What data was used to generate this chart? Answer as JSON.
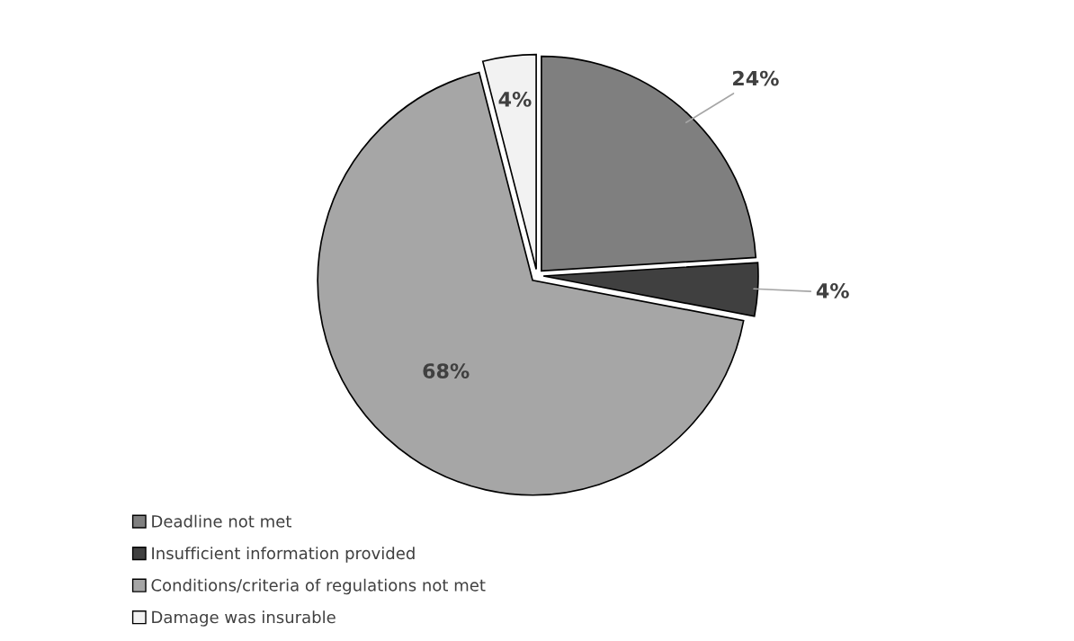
{
  "chart_data": {
    "type": "pie",
    "categories": [
      "Deadline not met",
      "Insufficient information provided",
      "Conditions/criteria of regulations not met",
      "Damage was insurable"
    ],
    "values": [
      24,
      4,
      68,
      4
    ],
    "colors": [
      "#7f7f7f",
      "#404040",
      "#a6a6a6",
      "#f2f2f2"
    ],
    "value_labels": [
      "24%",
      "4%",
      "68%",
      "4%"
    ],
    "legend": "bottom left"
  }
}
